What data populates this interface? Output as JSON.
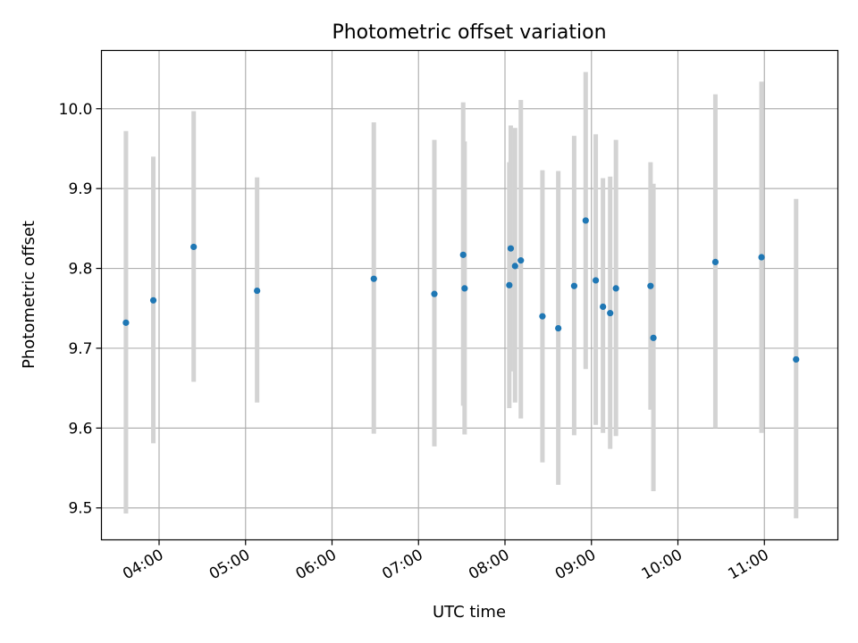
{
  "chart_data": {
    "type": "scatter",
    "title": "Photometric offset variation",
    "xlabel": "UTC time",
    "ylabel": "Photometric offset",
    "x_tick_labels": [
      "04:00",
      "05:00",
      "06:00",
      "07:00",
      "08:00",
      "09:00",
      "10:00",
      "11:00"
    ],
    "y_tick_labels": [
      "9.5",
      "9.6",
      "9.7",
      "9.8",
      "9.9",
      "10.0"
    ],
    "x_ticks": [
      "04:00",
      "05:00",
      "06:00",
      "07:00",
      "08:00",
      "09:00",
      "10:00",
      "11:00"
    ],
    "y_ticks": [
      9.5,
      9.6,
      9.7,
      9.8,
      9.9,
      10.0
    ],
    "xlim": [
      "03:20",
      "11:51"
    ],
    "ylim": [
      9.46,
      10.073
    ],
    "grid": true,
    "colors": {
      "points": "#1f77b4",
      "error_bars": "#d3d3d3",
      "grid": "#b0b0b0"
    },
    "points": [
      {
        "x": "03:37",
        "y": 9.732,
        "ylow": 9.493,
        "yhigh": 9.972
      },
      {
        "x": "03:56",
        "y": 9.76,
        "ylow": 9.581,
        "yhigh": 9.94
      },
      {
        "x": "04:24",
        "y": 9.827,
        "ylow": 9.658,
        "yhigh": 9.997
      },
      {
        "x": "05:08",
        "y": 9.772,
        "ylow": 9.632,
        "yhigh": 9.914
      },
      {
        "x": "06:29",
        "y": 9.787,
        "ylow": 9.593,
        "yhigh": 9.983
      },
      {
        "x": "07:11",
        "y": 9.768,
        "ylow": 9.577,
        "yhigh": 9.961
      },
      {
        "x": "07:31",
        "y": 9.817,
        "ylow": 9.628,
        "yhigh": 10.008
      },
      {
        "x": "07:32",
        "y": 9.775,
        "ylow": 9.592,
        "yhigh": 9.959
      },
      {
        "x": "08:03",
        "y": 9.779,
        "ylow": 9.625,
        "yhigh": 9.933
      },
      {
        "x": "08:04",
        "y": 9.825,
        "ylow": 9.671,
        "yhigh": 9.979
      },
      {
        "x": "08:07",
        "y": 9.803,
        "ylow": 9.632,
        "yhigh": 9.976
      },
      {
        "x": "08:11",
        "y": 9.81,
        "ylow": 9.612,
        "yhigh": 10.011
      },
      {
        "x": "08:26",
        "y": 9.74,
        "ylow": 9.557,
        "yhigh": 9.923
      },
      {
        "x": "08:37",
        "y": 9.725,
        "ylow": 9.529,
        "yhigh": 9.922
      },
      {
        "x": "08:48",
        "y": 9.778,
        "ylow": 9.591,
        "yhigh": 9.966
      },
      {
        "x": "08:56",
        "y": 9.86,
        "ylow": 9.674,
        "yhigh": 10.046
      },
      {
        "x": "09:03",
        "y": 9.785,
        "ylow": 9.604,
        "yhigh": 9.968
      },
      {
        "x": "09:08",
        "y": 9.752,
        "ylow": 9.594,
        "yhigh": 9.913
      },
      {
        "x": "09:13",
        "y": 9.744,
        "ylow": 9.574,
        "yhigh": 9.915
      },
      {
        "x": "09:17",
        "y": 9.775,
        "ylow": 9.59,
        "yhigh": 9.961
      },
      {
        "x": "09:41",
        "y": 9.778,
        "ylow": 9.623,
        "yhigh": 9.933
      },
      {
        "x": "09:43",
        "y": 9.713,
        "ylow": 9.521,
        "yhigh": 9.906
      },
      {
        "x": "10:26",
        "y": 9.808,
        "ylow": 9.6,
        "yhigh": 10.018
      },
      {
        "x": "10:58",
        "y": 9.814,
        "ylow": 9.594,
        "yhigh": 10.034
      },
      {
        "x": "11:22",
        "y": 9.686,
        "ylow": 9.487,
        "yhigh": 9.887
      }
    ]
  }
}
